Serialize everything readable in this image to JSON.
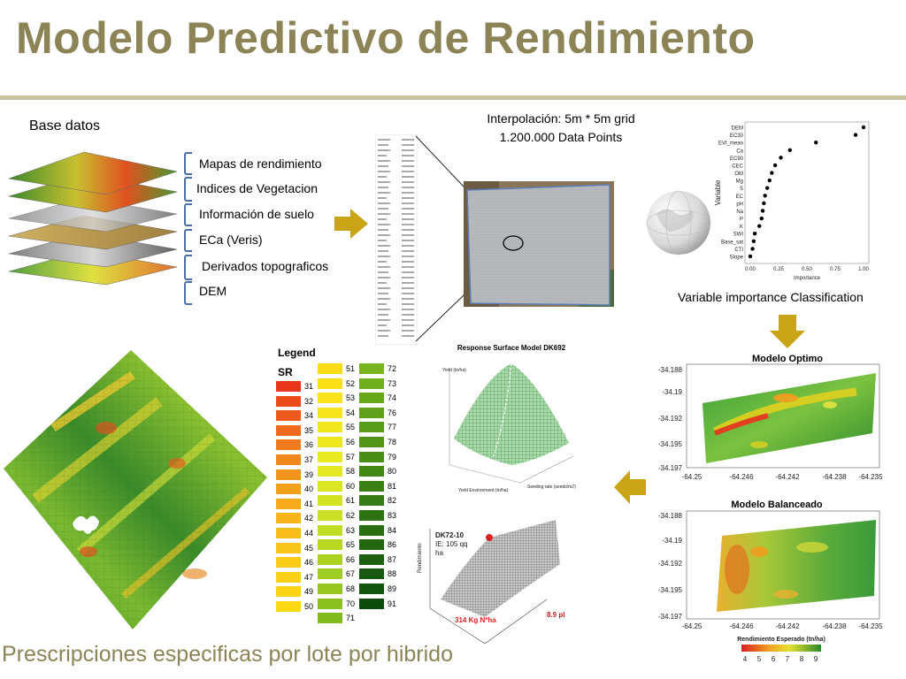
{
  "title": "Modelo Predictivo de Rendimiento",
  "base_datos_label": "Base datos",
  "data_layers": [
    "Mapas de rendimiento",
    "Indices de Vegetacion",
    "Información de suelo",
    "ECa (Veris)",
    "Derivados topograficos",
    "DEM"
  ],
  "interpolation": {
    "line1": "Interpolación: 5m * 5m grid",
    "line2": "1.200.000 Data Points"
  },
  "variable_importance": {
    "caption": "Variable importance Classification",
    "xlabel": "Importance",
    "ylabel": "Variable",
    "ticks": [
      "0.00",
      "0.25",
      "0.50",
      "0.75",
      "1.00"
    ],
    "variables": [
      "DEM",
      "EC30",
      "EVI_mean",
      "Ca",
      "EC90",
      "CEC",
      "OM",
      "Mg",
      "S",
      "EC",
      "pH",
      "Na",
      "P",
      "K",
      "SWI",
      "Base_sat",
      "CTI",
      "Slope"
    ],
    "values": [
      1.0,
      0.93,
      0.58,
      0.35,
      0.27,
      0.22,
      0.19,
      0.17,
      0.15,
      0.13,
      0.12,
      0.11,
      0.1,
      0.08,
      0.04,
      0.03,
      0.02,
      0.0
    ]
  },
  "modelo_optimo": {
    "title": "Modelo Optimo",
    "y_ticks": [
      "-34.188",
      "-34.19",
      "-34.192",
      "-34.195",
      "-34.197"
    ],
    "x_ticks": [
      "-64.25",
      "-64.246",
      "-64.242",
      "-64.238",
      "-64.235"
    ]
  },
  "modelo_balanceado": {
    "title": "Modelo Balanceado",
    "y_ticks": [
      "-34.188",
      "-34.19",
      "-34.192",
      "-34.195",
      "-34.197"
    ],
    "x_ticks": [
      "-64.25",
      "-64.246",
      "-64.242",
      "-64.238",
      "-64.235"
    ],
    "colorbar_label": "Rendimiento Esperado (tn/ha)",
    "colorbar_ticks": [
      "4",
      "5",
      "6",
      "7",
      "8",
      "9"
    ]
  },
  "response_surface": {
    "title": "Response Surface Model DK692",
    "z_label": "Yield (tn/ha)",
    "x_label": "Yield Environment (tn/ha)",
    "y_label": "Seeding rate (seeds/m2)"
  },
  "dk72": {
    "label": "DK72-10",
    "ie": "IE: 105 qq",
    "ie_unit": "ha",
    "n_rate": "314 Kg N*ha",
    "density": "8.9 pl m",
    "z_label": "Rendimiento"
  },
  "legend": {
    "title": "Legend",
    "header": "SR",
    "columns": [
      {
        "values": [
          "31",
          "32",
          "34",
          "35",
          "36",
          "37",
          "39",
          "40",
          "41",
          "42",
          "44",
          "45",
          "46",
          "47",
          "49",
          "50"
        ],
        "colors": [
          "#e8361a",
          "#ea4a1a",
          "#ec5a1b",
          "#ef6b1c",
          "#f07a1c",
          "#f2881c",
          "#f3941c",
          "#f5a01c",
          "#f6aa1b",
          "#f7b41b",
          "#f8bd1a",
          "#f9c419",
          "#facb18",
          "#fad017",
          "#fbd416",
          "#fbd816"
        ]
      },
      {
        "values": [
          "51",
          "52",
          "53",
          "54",
          "55",
          "56",
          "57",
          "58",
          "60",
          "61",
          "62",
          "63",
          "65",
          "66",
          "67",
          "68",
          "70",
          "71"
        ],
        "colors": [
          "#fbdc16",
          "#fbdf17",
          "#f9e21a",
          "#f6e41c",
          "#f2e61e",
          "#eee820",
          "#e9e922",
          "#e2e823",
          "#dae624",
          "#d2e324",
          "#c9e024",
          "#c0dc24",
          "#b6d723",
          "#acd222",
          "#a1cc21",
          "#97c620",
          "#8cc01f",
          "#82ba1e"
        ]
      },
      {
        "values": [
          "72",
          "73",
          "74",
          "76",
          "77",
          "78",
          "79",
          "80",
          "81",
          "82",
          "83",
          "84",
          "86",
          "87",
          "88",
          "89",
          "91"
        ],
        "colors": [
          "#77b41d",
          "#6fae1c",
          "#67a71b",
          "#5fa11a",
          "#589a19",
          "#519418",
          "#4a8d17",
          "#438716",
          "#3c8015",
          "#357a14",
          "#2e7313",
          "#286d12",
          "#226611",
          "#1c6010",
          "#17590f",
          "#12530e",
          "#0d4c0d"
        ]
      }
    ]
  },
  "bottom_caption": "Prescripciones especificas por lote por hibrido",
  "colors": {
    "title": "#8c8456",
    "rule": "#cbc4a2",
    "arrow": "#c9a417"
  }
}
